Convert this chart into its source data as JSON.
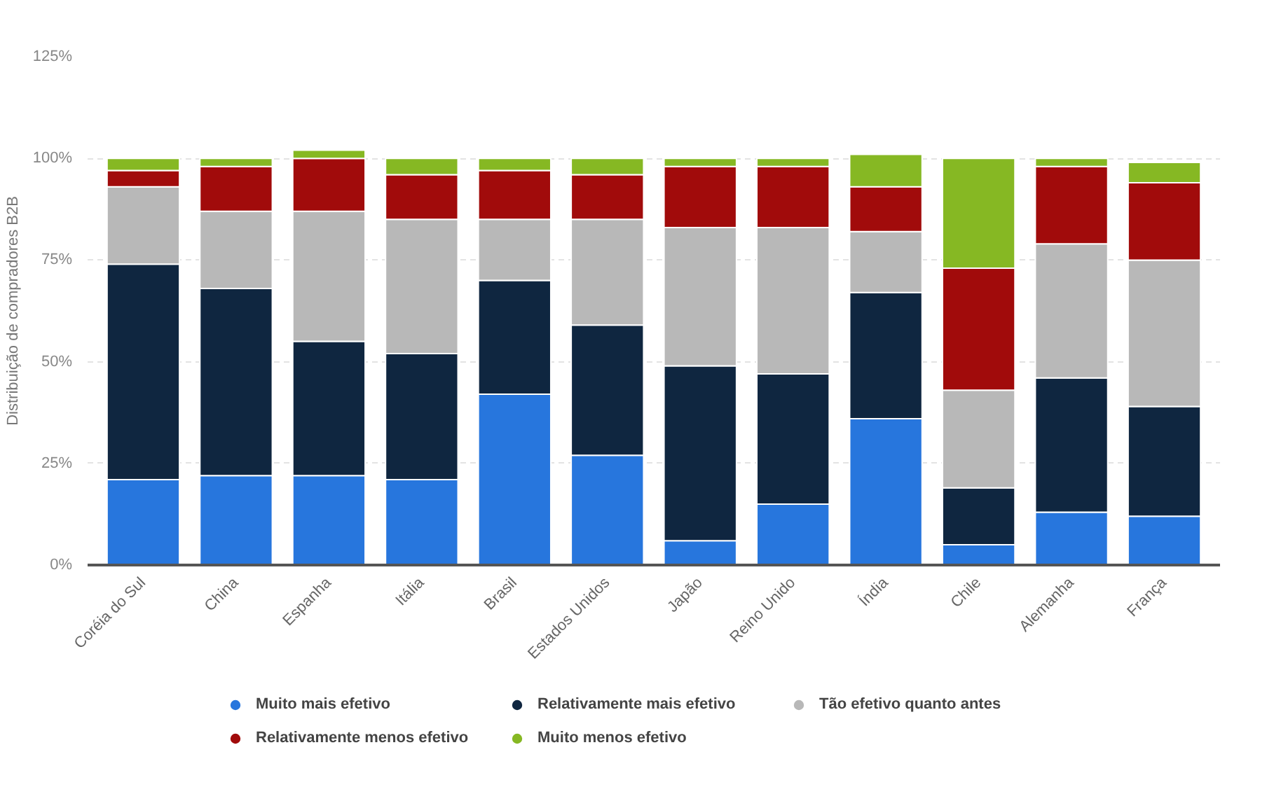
{
  "chart_data": {
    "type": "bar",
    "stacked": true,
    "ylabel": "Distribuição de compradores B2B",
    "categories": [
      "Coréia do Sul",
      "China",
      "Espanha",
      "Itália",
      "Brasil",
      "Estados Unidos",
      "Japão",
      "Reino Unido",
      "Índia",
      "Chile",
      "Alemanha",
      "França"
    ],
    "series": [
      {
        "name": "Muito mais efetivo",
        "color": "#2776dd",
        "values": [
          21,
          22,
          22,
          21,
          42,
          27,
          6,
          15,
          36,
          5,
          13,
          12
        ]
      },
      {
        "name": "Relativamente mais efetivo",
        "color": "#0f2640",
        "values": [
          53,
          46,
          33,
          31,
          28,
          32,
          43,
          32,
          31,
          14,
          33,
          27
        ]
      },
      {
        "name": "Tão efetivo quanto antes",
        "color": "#b8b8b8",
        "values": [
          19,
          19,
          32,
          33,
          15,
          26,
          34,
          36,
          15,
          24,
          33,
          36
        ]
      },
      {
        "name": "Relativamente menos efetivo",
        "color": "#a10b0b",
        "values": [
          4,
          11,
          13,
          11,
          12,
          11,
          15,
          15,
          11,
          30,
          19,
          19
        ]
      },
      {
        "name": "Muito menos efetivo",
        "color": "#86b823",
        "values": [
          3,
          2,
          2,
          4,
          3,
          4,
          2,
          2,
          8,
          27,
          2,
          5
        ]
      }
    ],
    "ylim": [
      0,
      125
    ],
    "yticks": [
      {
        "value": 0,
        "label": "0%"
      },
      {
        "value": 25,
        "label": "25%"
      },
      {
        "value": 50,
        "label": "50%"
      },
      {
        "value": 75,
        "label": "75%"
      },
      {
        "value": 100,
        "label": "100%"
      },
      {
        "value": 125,
        "label": "125%"
      }
    ],
    "grid": "y",
    "legend": "bottom"
  }
}
